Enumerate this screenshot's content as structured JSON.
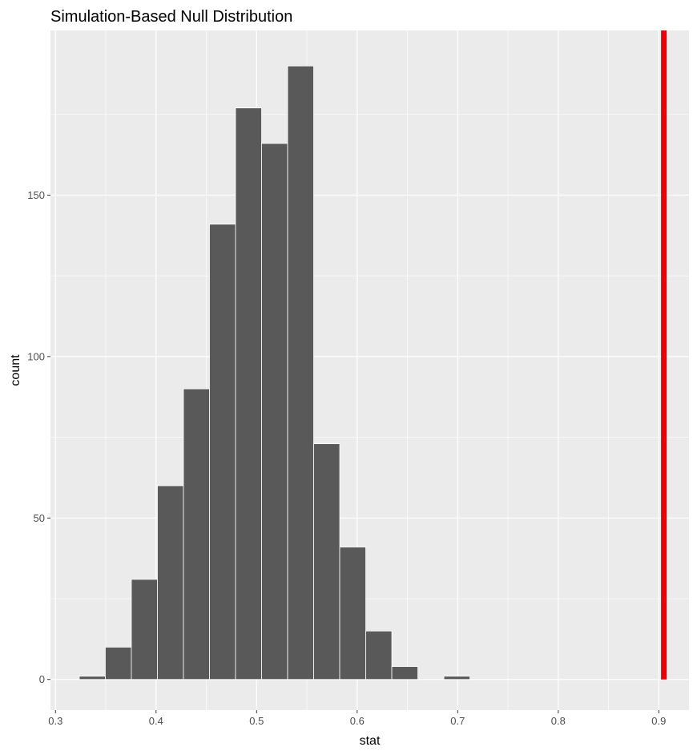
{
  "chart_data": {
    "type": "bar",
    "title": "Simulation-Based Null Distribution",
    "xlabel": "stat",
    "ylabel": "count",
    "xlim": [
      0.295,
      0.93
    ],
    "ylim": [
      -9.5,
      201
    ],
    "x_ticks": [
      0.3,
      0.4,
      0.5,
      0.6,
      0.7,
      0.8,
      0.9
    ],
    "x_tick_labels": [
      "0.3",
      "0.4",
      "0.5",
      "0.6",
      "0.7",
      "0.8",
      "0.9"
    ],
    "y_ticks": [
      0,
      50,
      100,
      150
    ],
    "y_tick_labels": [
      "0",
      "50",
      "100",
      "150"
    ],
    "bin_width": 0.0259,
    "bin_centers": [
      0.3366,
      0.3625,
      0.3884,
      0.4143,
      0.4402,
      0.4661,
      0.492,
      0.5179,
      0.5438,
      0.5697,
      0.5956,
      0.6215,
      0.6474,
      0.6733,
      0.6992
    ],
    "counts": [
      1,
      10,
      31,
      60,
      90,
      141,
      177,
      166,
      190,
      73,
      41,
      15,
      4,
      0,
      1
    ],
    "observed_stat": 0.905,
    "colors": {
      "panel_background": "#ebebeb",
      "grid": "#ffffff",
      "bar_fill": "#595959",
      "bar_outline": "#ffffff",
      "observed_line": "#ee0000"
    },
    "grid": true,
    "legend": "none"
  }
}
